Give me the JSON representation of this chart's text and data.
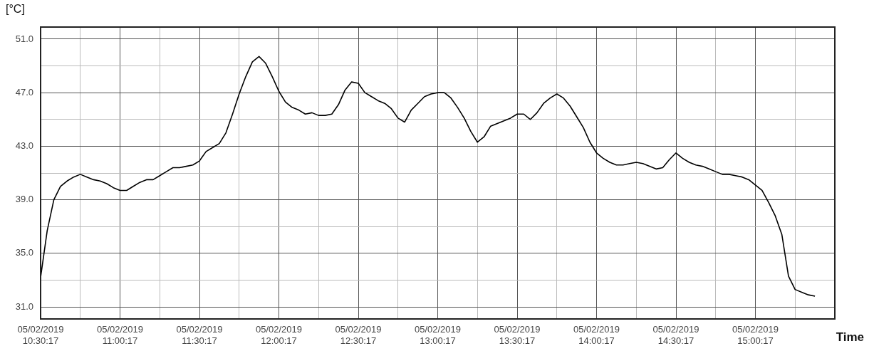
{
  "chart_data": {
    "type": "line",
    "xlabel": "Time",
    "ylabel": "[°C]",
    "categories": [
      "05/02/2019 10:30:17",
      null,
      null,
      null,
      null,
      null,
      null,
      null,
      null,
      null,
      null,
      null,
      "05/02/2019 11:00:17",
      null,
      null,
      null,
      null,
      null,
      null,
      null,
      null,
      null,
      null,
      null,
      "05/02/2019 11:30:17",
      null,
      null,
      null,
      null,
      null,
      null,
      null,
      null,
      null,
      null,
      null,
      "05/02/2019 12:00:17",
      null,
      null,
      null,
      null,
      null,
      null,
      null,
      null,
      null,
      null,
      null,
      "05/02/2019 12:30:17",
      null,
      null,
      null,
      null,
      null,
      null,
      null,
      null,
      null,
      null,
      null,
      "05/02/2019 13:00:17",
      null,
      null,
      null,
      null,
      null,
      null,
      null,
      null,
      null,
      null,
      null,
      "05/02/2019 13:30:17",
      null,
      null,
      null,
      null,
      null,
      null,
      null,
      null,
      null,
      null,
      null,
      "05/02/2019 14:00:17",
      null,
      null,
      null,
      null,
      null,
      null,
      null,
      null,
      null,
      null,
      null,
      "05/02/2019 14:30:17",
      null,
      null,
      null,
      null,
      null,
      null,
      null,
      null,
      null,
      null,
      null,
      "05/02/2019 15:00:17",
      null,
      null,
      null,
      null,
      null,
      null,
      null,
      null,
      null,
      null,
      null,
      null
    ],
    "series": [
      {
        "color": "#000000",
        "values": [
          33.2,
          36.7,
          39.0,
          40.0,
          40.4,
          40.7,
          40.9,
          40.7,
          40.5,
          40.4,
          40.2,
          39.9,
          39.7,
          39.7,
          40.0,
          40.3,
          40.5,
          40.5,
          40.8,
          41.1,
          41.4,
          41.4,
          41.5,
          41.6,
          41.9,
          42.6,
          42.9,
          43.2,
          44.0,
          45.4,
          46.9,
          48.2,
          49.3,
          49.7,
          49.2,
          48.2,
          47.1,
          46.3,
          45.9,
          45.7,
          45.4,
          45.5,
          45.3,
          45.3,
          45.4,
          46.1,
          47.2,
          47.8,
          47.7,
          47.0,
          46.7,
          46.4,
          46.2,
          45.8,
          45.1,
          44.8,
          45.7,
          46.2,
          46.7,
          46.9,
          47.0,
          47.0,
          46.6,
          45.9,
          45.1,
          44.1,
          43.3,
          43.7,
          44.5,
          44.7,
          44.9,
          45.1,
          45.4,
          45.4,
          45.0,
          45.5,
          46.2,
          46.6,
          46.9,
          46.6,
          46.0,
          45.2,
          44.4,
          43.3,
          42.5,
          42.1,
          41.8,
          41.6,
          41.6,
          41.7,
          41.8,
          41.7,
          41.5,
          41.3,
          41.4,
          42.0,
          42.5,
          42.1,
          41.8,
          41.6,
          41.5,
          41.3,
          41.1,
          40.9,
          40.9,
          40.8,
          40.7,
          40.5,
          40.1,
          39.7,
          38.8,
          37.8,
          36.4,
          33.3,
          32.3,
          32.1,
          31.9,
          31.8,
          null,
          null,
          null
        ]
      }
    ],
    "ylim": [
      30.1,
      51.9
    ],
    "yticks": [
      {
        "value": 31,
        "label": "31.0"
      },
      {
        "value": 33,
        "label": null
      },
      {
        "value": 35,
        "label": "35.0"
      },
      {
        "value": 37,
        "label": null
      },
      {
        "value": 39,
        "label": "39.0"
      },
      {
        "value": 41,
        "label": null
      },
      {
        "value": 43,
        "label": "43.0"
      },
      {
        "value": 45,
        "label": null
      },
      {
        "value": 47,
        "label": "47.0"
      },
      {
        "value": 49,
        "label": null
      },
      {
        "value": 51,
        "label": "51.0"
      }
    ],
    "grid": true,
    "legend": false,
    "marker": "none",
    "line_style": "solid"
  }
}
